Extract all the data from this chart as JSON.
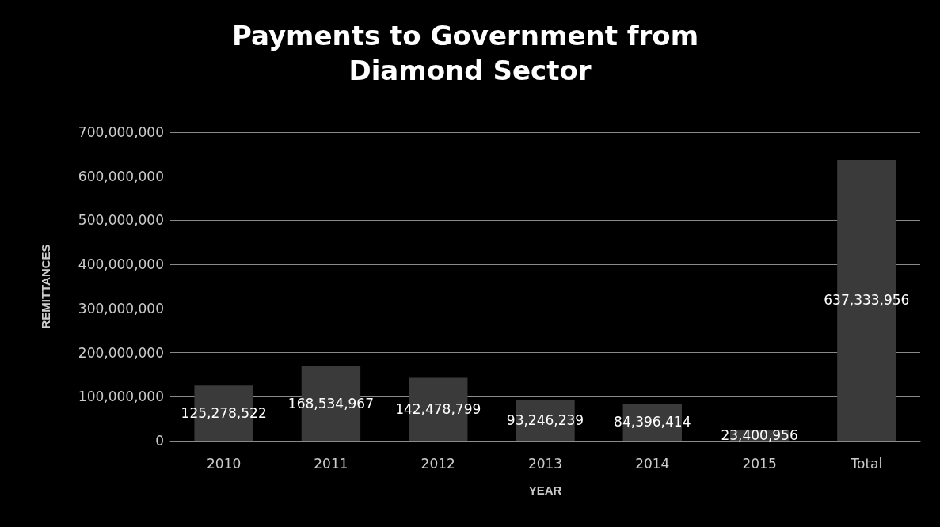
{
  "chart_data": {
    "type": "bar",
    "title": "Payments to Government from Diamond Sector",
    "xlabel": "YEAR",
    "ylabel": "REMITTANCES",
    "categories": [
      "2010",
      "2011",
      "2012",
      "2013",
      "2014",
      "2015",
      "Total"
    ],
    "values": [
      125278522,
      168534967,
      142478799,
      93246239,
      84396414,
      23400956,
      637333956
    ],
    "value_labels": [
      "125,278,522",
      "168,534,967",
      "142,478,799",
      "93,246,239",
      "84,396,414",
      "23,400,956",
      "637,333,956"
    ],
    "color": "#3a3a3a",
    "ylim": [
      0,
      700000000
    ],
    "yticks": [
      0,
      {
        "value": 100000000,
        "label": "100,000,000"
      },
      {
        "value": 200000000,
        "label": "200,000,000"
      },
      {
        "value": 300000000,
        "label": "300,000,000"
      },
      {
        "value": 400000000,
        "label": "400,000,000"
      },
      {
        "value": 500000000,
        "label": "500,000,000"
      },
      {
        "value": 600000000,
        "label": "600,000,000"
      },
      {
        "value": 700000000,
        "label": "700,000,000"
      }
    ],
    "grid": "y"
  }
}
